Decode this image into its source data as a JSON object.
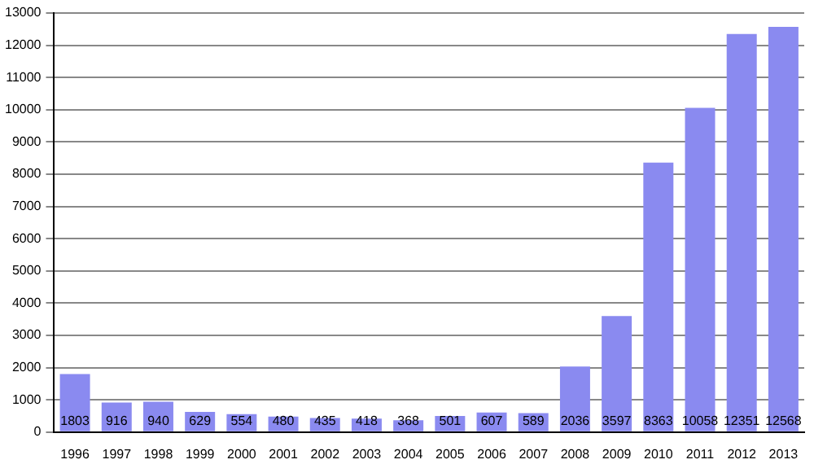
{
  "chart_data": {
    "type": "bar",
    "categories": [
      "1996",
      "1997",
      "1998",
      "1999",
      "2000",
      "2001",
      "2002",
      "2003",
      "2004",
      "2005",
      "2006",
      "2007",
      "2008",
      "2009",
      "2010",
      "2011",
      "2012",
      "2013"
    ],
    "values": [
      1803,
      916,
      940,
      629,
      554,
      480,
      435,
      418,
      368,
      501,
      607,
      589,
      2036,
      3597,
      8363,
      10058,
      12351,
      12568
    ],
    "color": "#8a8af0",
    "ylim": [
      0,
      13000
    ],
    "yticks": [
      0,
      1000,
      2000,
      3000,
      4000,
      5000,
      6000,
      7000,
      8000,
      9000,
      10000,
      11000,
      12000,
      13000
    ],
    "grid": "y",
    "data_labels": true
  }
}
